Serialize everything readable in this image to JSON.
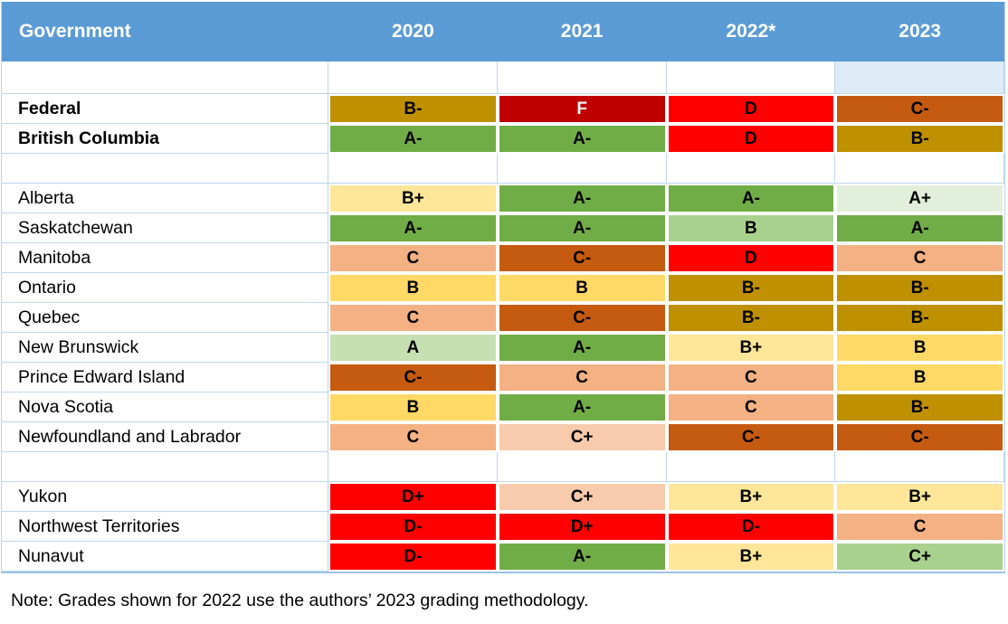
{
  "chart_data": {
    "type": "table",
    "columns": [
      "Government",
      "2020",
      "2021",
      "2022*",
      "2023"
    ],
    "rows": [
      [
        "Federal",
        "B-",
        "F",
        "D",
        "C-"
      ],
      [
        "British Columbia",
        "A-",
        "A-",
        "D",
        "B-"
      ],
      [
        "Alberta",
        "B+",
        "A-",
        "A-",
        "A+"
      ],
      [
        "Saskatchewan",
        "A-",
        "A-",
        "B",
        "A-"
      ],
      [
        "Manitoba",
        "C",
        "C-",
        "D",
        "C"
      ],
      [
        "Ontario",
        "B",
        "B",
        "B-",
        "B-"
      ],
      [
        "Quebec",
        "C",
        "C-",
        "B-",
        "B-"
      ],
      [
        "New Brunswick",
        "A",
        "A-",
        "B+",
        "B"
      ],
      [
        "Prince Edward Island",
        "C-",
        "C",
        "C",
        "B"
      ],
      [
        "Nova Scotia",
        "B",
        "A-",
        "C",
        "B-"
      ],
      [
        "Newfoundland and Labrador",
        "C",
        "C+",
        "C-",
        "C-"
      ],
      [
        "Yukon",
        "D+",
        "C+",
        "B+",
        "B+"
      ],
      [
        "Northwest Territories",
        "D-",
        "D+",
        "D-",
        "C"
      ],
      [
        "Nunavut",
        "D-",
        "A-",
        "B+",
        "C+"
      ]
    ],
    "note": "Note: Grades shown for 2022 use the authors’ 2023 grading methodology."
  },
  "colors": {
    "header_bg": "#5B9BD5",
    "header_text": "#FFFFFF",
    "gridline": "#BDD7EE",
    "highlight_cell": "#DEEAF6",
    "gold": "#BF9000",
    "dark_red": "#C00000",
    "red": "#FF0000",
    "dark_orange": "#C55A11",
    "light_orange": "#F4B183",
    "peach": "#F8CBAD",
    "yellow": "#FFD966",
    "light_yellow": "#FFE699",
    "green": "#70AD47",
    "medium_green": "#A9D18E",
    "light_green": "#C6E0B4",
    "pale_green": "#E2EFDA"
  },
  "header": {
    "government_label": "Government",
    "year_labels": [
      "2020",
      "2021",
      "2022*",
      "2023"
    ]
  },
  "rows": [
    {
      "kind": "spacer",
      "cells": [
        {
          "text": "",
          "bg": ""
        },
        {
          "text": "",
          "bg": ""
        },
        {
          "text": "",
          "bg": ""
        },
        {
          "text": "",
          "bg": "#DEEAF6"
        }
      ]
    },
    {
      "kind": "data",
      "label": "Federal",
      "bold": true,
      "grades": [
        {
          "text": "B-",
          "bg": "#BF9000",
          "fg": "#000000"
        },
        {
          "text": "F",
          "bg": "#C00000",
          "fg": "#FFFFFF"
        },
        {
          "text": "D",
          "bg": "#FF0000",
          "fg": "#000000"
        },
        {
          "text": "C-",
          "bg": "#C55A11",
          "fg": "#000000"
        }
      ]
    },
    {
      "kind": "data",
      "label": "British Columbia",
      "bold": true,
      "grades": [
        {
          "text": "A-",
          "bg": "#70AD47",
          "fg": "#000000"
        },
        {
          "text": "A-",
          "bg": "#70AD47",
          "fg": "#000000"
        },
        {
          "text": "D",
          "bg": "#FF0000",
          "fg": "#000000"
        },
        {
          "text": "B-",
          "bg": "#BF9000",
          "fg": "#000000"
        }
      ]
    },
    {
      "kind": "spacer",
      "cells": [
        {
          "text": "",
          "bg": ""
        },
        {
          "text": "",
          "bg": ""
        },
        {
          "text": "",
          "bg": ""
        },
        {
          "text": "",
          "bg": ""
        }
      ]
    },
    {
      "kind": "data",
      "label": "Alberta",
      "bold": false,
      "grades": [
        {
          "text": "B+",
          "bg": "#FFE699",
          "fg": "#000000"
        },
        {
          "text": "A-",
          "bg": "#70AD47",
          "fg": "#000000"
        },
        {
          "text": "A-",
          "bg": "#70AD47",
          "fg": "#000000"
        },
        {
          "text": "A+",
          "bg": "#E2EFDA",
          "fg": "#000000"
        }
      ]
    },
    {
      "kind": "data",
      "label": "Saskatchewan",
      "bold": false,
      "grades": [
        {
          "text": "A-",
          "bg": "#70AD47",
          "fg": "#000000"
        },
        {
          "text": "A-",
          "bg": "#70AD47",
          "fg": "#000000"
        },
        {
          "text": "B",
          "bg": "#A9D18E",
          "fg": "#000000"
        },
        {
          "text": "A-",
          "bg": "#70AD47",
          "fg": "#000000"
        }
      ]
    },
    {
      "kind": "data",
      "label": "Manitoba",
      "bold": false,
      "grades": [
        {
          "text": "C",
          "bg": "#F4B183",
          "fg": "#000000"
        },
        {
          "text": "C-",
          "bg": "#C55A11",
          "fg": "#000000"
        },
        {
          "text": "D",
          "bg": "#FF0000",
          "fg": "#000000"
        },
        {
          "text": "C",
          "bg": "#F4B183",
          "fg": "#000000"
        }
      ]
    },
    {
      "kind": "data",
      "label": "Ontario",
      "bold": false,
      "grades": [
        {
          "text": "B",
          "bg": "#FFD966",
          "fg": "#000000"
        },
        {
          "text": "B",
          "bg": "#FFD966",
          "fg": "#000000"
        },
        {
          "text": "B-",
          "bg": "#BF9000",
          "fg": "#000000"
        },
        {
          "text": "B-",
          "bg": "#BF9000",
          "fg": "#000000"
        }
      ]
    },
    {
      "kind": "data",
      "label": "Quebec",
      "bold": false,
      "grades": [
        {
          "text": "C",
          "bg": "#F4B183",
          "fg": "#000000"
        },
        {
          "text": "C-",
          "bg": "#C55A11",
          "fg": "#000000"
        },
        {
          "text": "B-",
          "bg": "#BF9000",
          "fg": "#000000"
        },
        {
          "text": "B-",
          "bg": "#BF9000",
          "fg": "#000000"
        }
      ]
    },
    {
      "kind": "data",
      "label": "New Brunswick",
      "bold": false,
      "grades": [
        {
          "text": "A",
          "bg": "#C6E0B4",
          "fg": "#000000"
        },
        {
          "text": "A-",
          "bg": "#70AD47",
          "fg": "#000000"
        },
        {
          "text": "B+",
          "bg": "#FFE699",
          "fg": "#000000"
        },
        {
          "text": "B",
          "bg": "#FFD966",
          "fg": "#000000"
        }
      ]
    },
    {
      "kind": "data",
      "label": "Prince Edward Island",
      "bold": false,
      "grades": [
        {
          "text": "C-",
          "bg": "#C55A11",
          "fg": "#000000"
        },
        {
          "text": "C",
          "bg": "#F4B183",
          "fg": "#000000"
        },
        {
          "text": "C",
          "bg": "#F4B183",
          "fg": "#000000"
        },
        {
          "text": "B",
          "bg": "#FFD966",
          "fg": "#000000"
        }
      ]
    },
    {
      "kind": "data",
      "label": "Nova Scotia",
      "bold": false,
      "grades": [
        {
          "text": "B",
          "bg": "#FFD966",
          "fg": "#000000"
        },
        {
          "text": "A-",
          "bg": "#70AD47",
          "fg": "#000000"
        },
        {
          "text": "C",
          "bg": "#F4B183",
          "fg": "#000000"
        },
        {
          "text": "B-",
          "bg": "#BF9000",
          "fg": "#000000"
        }
      ]
    },
    {
      "kind": "data",
      "label": "Newfoundland and Labrador",
      "bold": false,
      "grades": [
        {
          "text": "C",
          "bg": "#F4B183",
          "fg": "#000000"
        },
        {
          "text": "C+",
          "bg": "#F8CBAD",
          "fg": "#000000"
        },
        {
          "text": "C-",
          "bg": "#C55A11",
          "fg": "#000000"
        },
        {
          "text": "C-",
          "bg": "#C55A11",
          "fg": "#000000"
        }
      ]
    },
    {
      "kind": "spacer",
      "cells": [
        {
          "text": "",
          "bg": ""
        },
        {
          "text": "",
          "bg": ""
        },
        {
          "text": "",
          "bg": ""
        },
        {
          "text": "",
          "bg": ""
        }
      ]
    },
    {
      "kind": "data",
      "label": "Yukon",
      "bold": false,
      "grades": [
        {
          "text": "D+",
          "bg": "#FF0000",
          "fg": "#000000"
        },
        {
          "text": "C+",
          "bg": "#F8CBAD",
          "fg": "#000000"
        },
        {
          "text": "B+",
          "bg": "#FFE699",
          "fg": "#000000"
        },
        {
          "text": "B+",
          "bg": "#FFE699",
          "fg": "#000000"
        }
      ]
    },
    {
      "kind": "data",
      "label": "Northwest Territories",
      "bold": false,
      "grades": [
        {
          "text": "D-",
          "bg": "#FF0000",
          "fg": "#000000"
        },
        {
          "text": "D+",
          "bg": "#FF0000",
          "fg": "#000000"
        },
        {
          "text": "D-",
          "bg": "#FF0000",
          "fg": "#000000"
        },
        {
          "text": "C",
          "bg": "#F4B183",
          "fg": "#000000"
        }
      ]
    },
    {
      "kind": "data",
      "label": "Nunavut",
      "bold": false,
      "grades": [
        {
          "text": "D-",
          "bg": "#FF0000",
          "fg": "#000000"
        },
        {
          "text": "A-",
          "bg": "#70AD47",
          "fg": "#000000"
        },
        {
          "text": "B+",
          "bg": "#FFE699",
          "fg": "#000000"
        },
        {
          "text": "C+",
          "bg": "#A9D18E",
          "fg": "#000000"
        }
      ]
    }
  ],
  "note": "Note: Grades shown for 2022 use the authors’ 2023 grading methodology."
}
